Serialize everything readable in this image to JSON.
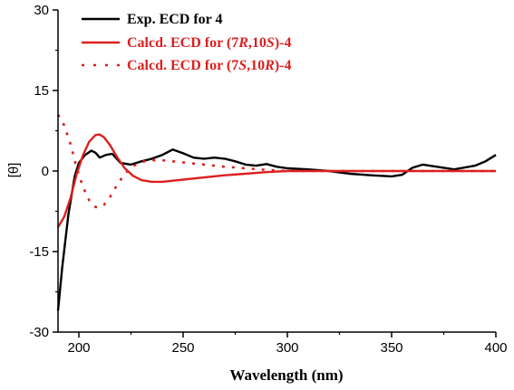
{
  "chart_data": {
    "type": "line",
    "xlabel": "Wavelength (nm)",
    "ylabel": "[θ]",
    "xlim": [
      190,
      400
    ],
    "ylim": [
      -30,
      30
    ],
    "xticks": [
      200,
      250,
      300,
      350,
      400
    ],
    "yticks": [
      -30,
      -15,
      0,
      15,
      30
    ],
    "grid": false,
    "legend_position": "top-left",
    "series": [
      {
        "legend_prefix": "Exp. ECD for 4",
        "legend_italic_parts": [],
        "color": "#000000",
        "style": "solid",
        "x": [
          190,
          192,
          195,
          198,
          200,
          203,
          206,
          208,
          210,
          213,
          216,
          220,
          225,
          230,
          235,
          240,
          245,
          250,
          255,
          260,
          265,
          270,
          275,
          280,
          285,
          290,
          295,
          300,
          310,
          320,
          330,
          340,
          350,
          355,
          360,
          365,
          370,
          380,
          390,
          395,
          400
        ],
        "y": [
          -26,
          -18,
          -8,
          -1,
          1.5,
          3,
          3.8,
          3.4,
          2.5,
          3,
          3.2,
          1.5,
          1.2,
          1.8,
          2.3,
          3,
          4,
          3.3,
          2.5,
          2.3,
          2.5,
          2.3,
          1.8,
          1.2,
          1,
          1.3,
          0.8,
          0.5,
          0.3,
          0,
          -0.5,
          -0.8,
          -1,
          -0.7,
          0.6,
          1.2,
          0.9,
          0.3,
          1,
          1.8,
          3
        ]
      },
      {
        "legend_prefix": "Calcd. ECD for (7",
        "legend_italic_parts": [
          "R",
          "S"
        ],
        "legend_mid": ",10",
        "legend_suffix": ")-4",
        "color": "#dd1f1f",
        "style": "solid",
        "x": [
          190,
          193,
          196,
          199,
          202,
          205,
          208,
          210,
          212,
          215,
          218,
          222,
          226,
          230,
          235,
          240,
          245,
          250,
          260,
          270,
          280,
          290,
          300,
          320,
          340,
          360,
          380,
          400
        ],
        "y": [
          -10.5,
          -8.5,
          -5,
          -0.5,
          3,
          5.5,
          6.7,
          6.8,
          6.3,
          4.8,
          2.8,
          0.5,
          -0.9,
          -1.7,
          -2,
          -2,
          -1.8,
          -1.6,
          -1.2,
          -0.8,
          -0.5,
          -0.2,
          0,
          0,
          0,
          0,
          0,
          0
        ]
      },
      {
        "legend_prefix": "Calcd. ECD for (7",
        "legend_italic_parts": [
          "S",
          "R"
        ],
        "legend_mid": ",10",
        "legend_suffix": ")-4",
        "color": "#dd1f1f",
        "style": "dotted",
        "x": [
          190,
          193,
          196,
          199,
          202,
          205,
          208,
          210,
          212,
          215,
          218,
          222,
          226,
          230,
          235,
          240,
          245,
          250,
          260,
          270,
          280,
          290,
          300,
          320,
          340,
          360,
          380,
          400
        ],
        "y": [
          10.5,
          8.5,
          5,
          0.5,
          -3,
          -5.5,
          -6.7,
          -6.8,
          -6.3,
          -4.8,
          -2.8,
          -0.5,
          0.9,
          1.7,
          2,
          2,
          1.8,
          1.6,
          1.2,
          0.8,
          0.5,
          0.2,
          0,
          0,
          0,
          0,
          0,
          0
        ]
      }
    ]
  }
}
